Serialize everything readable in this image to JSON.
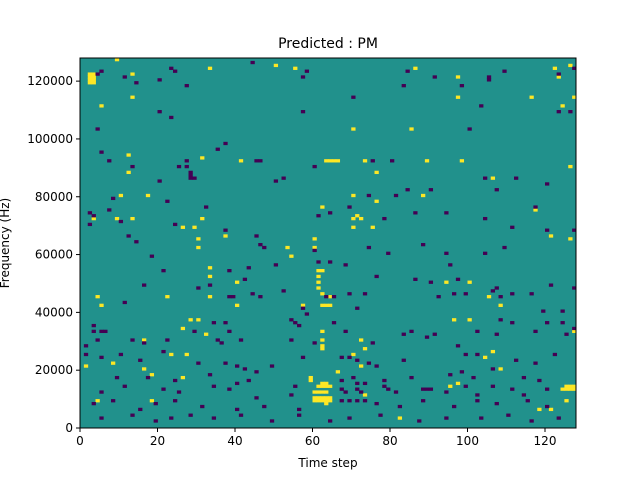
{
  "chart_data": {
    "type": "heatmap",
    "title": "Predicted : PM",
    "xlabel": "Time step",
    "ylabel": "Frequency (Hz)",
    "xlim": [
      0,
      128
    ],
    "ylim": [
      0,
      128000
    ],
    "xticks": [
      0,
      20,
      40,
      60,
      80,
      100,
      120
    ],
    "yticks": [
      0,
      20000,
      40000,
      60000,
      80000,
      100000,
      120000
    ],
    "xtick_labels": [
      "0",
      "20",
      "40",
      "60",
      "80",
      "100",
      "120"
    ],
    "ytick_labels": [
      "0",
      "20000",
      "40000",
      "60000",
      "80000",
      "100000",
      "120000"
    ],
    "colormap": "viridis",
    "colors": {
      "background": "#21918c",
      "high": "#fde725",
      "low": "#440154"
    },
    "bins": {
      "x": 128,
      "y": 128
    },
    "cell_values": {
      "background": 0,
      "high": 1,
      "low": -1
    },
    "cells_high": [
      [
        2,
        119
      ],
      [
        2,
        120
      ],
      [
        2,
        121
      ],
      [
        2,
        122
      ],
      [
        3,
        119
      ],
      [
        3,
        120
      ],
      [
        3,
        121
      ],
      [
        3,
        122
      ],
      [
        9,
        127
      ],
      [
        33,
        124
      ],
      [
        50,
        125
      ],
      [
        55,
        124
      ],
      [
        86,
        124
      ],
      [
        122,
        124
      ],
      [
        126,
        125
      ],
      [
        13,
        122
      ],
      [
        97,
        121
      ],
      [
        123,
        121
      ],
      [
        13,
        114
      ],
      [
        97,
        114
      ],
      [
        116,
        114
      ],
      [
        127,
        114
      ],
      [
        5,
        111
      ],
      [
        124,
        111
      ],
      [
        70,
        103
      ],
      [
        85,
        103
      ],
      [
        12,
        94
      ],
      [
        31,
        93
      ],
      [
        41,
        92
      ],
      [
        63,
        92
      ],
      [
        64,
        92
      ],
      [
        65,
        92
      ],
      [
        66,
        92
      ],
      [
        73,
        92
      ],
      [
        89,
        92
      ],
      [
        98,
        92
      ],
      [
        126,
        90
      ],
      [
        12,
        88
      ],
      [
        76,
        88
      ],
      [
        106,
        86
      ],
      [
        10,
        80
      ],
      [
        17,
        80
      ],
      [
        70,
        80
      ],
      [
        88,
        80
      ],
      [
        62,
        76
      ],
      [
        76,
        78
      ],
      [
        71,
        73
      ],
      [
        117,
        75
      ],
      [
        3,
        72
      ],
      [
        9,
        72
      ],
      [
        13,
        72
      ],
      [
        31,
        72
      ],
      [
        70,
        72
      ],
      [
        72,
        72
      ],
      [
        26,
        69
      ],
      [
        29,
        69
      ],
      [
        70,
        69
      ],
      [
        75,
        69
      ],
      [
        60,
        65
      ],
      [
        30,
        65
      ],
      [
        37,
        66
      ],
      [
        121,
        66
      ],
      [
        126,
        65
      ],
      [
        30,
        62
      ],
      [
        53,
        62
      ],
      [
        60,
        62
      ],
      [
        54,
        59
      ],
      [
        33,
        55
      ],
      [
        61,
        54
      ],
      [
        62,
        54
      ],
      [
        61,
        52
      ],
      [
        61,
        50
      ],
      [
        61,
        48
      ],
      [
        62,
        46
      ],
      [
        33,
        52
      ],
      [
        40,
        50
      ],
      [
        94,
        50
      ],
      [
        100,
        50
      ],
      [
        4,
        45
      ],
      [
        22,
        45
      ],
      [
        33,
        45
      ],
      [
        57,
        42
      ],
      [
        64,
        45
      ],
      [
        105,
        45
      ],
      [
        108,
        42
      ],
      [
        5,
        42
      ],
      [
        40,
        42
      ],
      [
        62,
        42
      ],
      [
        63,
        42
      ],
      [
        64,
        42
      ],
      [
        28,
        37
      ],
      [
        30,
        37
      ],
      [
        96,
        37
      ],
      [
        100,
        37
      ],
      [
        127,
        33
      ],
      [
        32,
        32
      ],
      [
        62,
        33
      ],
      [
        62,
        30
      ],
      [
        26,
        34
      ],
      [
        16,
        30
      ],
      [
        62,
        28
      ],
      [
        62,
        27
      ],
      [
        72,
        30
      ],
      [
        23,
        25
      ],
      [
        70,
        25
      ],
      [
        106,
        26
      ],
      [
        27,
        25
      ],
      [
        73,
        27
      ],
      [
        16,
        20
      ],
      [
        1,
        21
      ],
      [
        108,
        20
      ],
      [
        8,
        22
      ],
      [
        104,
        24
      ],
      [
        72,
        21
      ],
      [
        18,
        18
      ],
      [
        26,
        17
      ],
      [
        66,
        19
      ],
      [
        59,
        16
      ],
      [
        59,
        17
      ],
      [
        95,
        14
      ],
      [
        97,
        15
      ],
      [
        60,
        12
      ],
      [
        61,
        12
      ],
      [
        62,
        12
      ],
      [
        63,
        12
      ],
      [
        61,
        14
      ],
      [
        62,
        14
      ],
      [
        63,
        14
      ],
      [
        62,
        15
      ],
      [
        63,
        15
      ],
      [
        64,
        14
      ],
      [
        60,
        10
      ],
      [
        61,
        10
      ],
      [
        62,
        10
      ],
      [
        63,
        10
      ],
      [
        64,
        10
      ],
      [
        60,
        9
      ],
      [
        61,
        9
      ],
      [
        62,
        9
      ],
      [
        63,
        9
      ],
      [
        64,
        9
      ],
      [
        63,
        8
      ],
      [
        4,
        9
      ],
      [
        18,
        9
      ],
      [
        125,
        9
      ],
      [
        73,
        11
      ],
      [
        124,
        13
      ],
      [
        125,
        13
      ],
      [
        126,
        13
      ],
      [
        127,
        13
      ],
      [
        125,
        14
      ],
      [
        126,
        14
      ],
      [
        127,
        14
      ],
      [
        82,
        3
      ],
      [
        118,
        6
      ],
      [
        121,
        6
      ]
    ],
    "cells_low": [
      [
        4,
        122
      ],
      [
        23,
        124
      ],
      [
        44,
        126
      ],
      [
        24,
        123
      ],
      [
        58,
        123
      ],
      [
        84,
        123
      ],
      [
        109,
        123
      ],
      [
        123,
        122
      ],
      [
        5,
        123
      ],
      [
        105,
        121
      ],
      [
        127,
        124
      ],
      [
        11,
        121
      ],
      [
        14,
        119
      ],
      [
        20,
        120
      ],
      [
        27,
        118
      ],
      [
        57,
        121
      ],
      [
        91,
        121
      ],
      [
        105,
        120
      ],
      [
        83,
        118
      ],
      [
        98,
        118
      ],
      [
        20,
        109
      ],
      [
        57,
        109
      ],
      [
        103,
        111
      ],
      [
        126,
        109
      ],
      [
        123,
        109
      ],
      [
        23,
        107
      ],
      [
        70,
        114
      ],
      [
        4,
        103
      ],
      [
        100,
        103
      ],
      [
        5,
        95
      ],
      [
        27,
        92
      ],
      [
        35,
        96
      ],
      [
        37,
        98
      ],
      [
        45,
        92
      ],
      [
        46,
        92
      ],
      [
        75,
        92
      ],
      [
        80,
        92
      ],
      [
        7,
        92
      ],
      [
        13,
        90
      ],
      [
        25,
        90
      ],
      [
        27,
        90
      ],
      [
        28,
        88
      ],
      [
        20,
        85
      ],
      [
        28,
        86
      ],
      [
        29,
        86
      ],
      [
        28,
        87
      ],
      [
        50,
        85
      ],
      [
        60,
        90
      ],
      [
        52,
        86
      ],
      [
        104,
        86
      ],
      [
        84,
        82
      ],
      [
        90,
        82
      ],
      [
        107,
        82
      ],
      [
        112,
        86
      ],
      [
        120,
        84
      ],
      [
        8,
        79
      ],
      [
        22,
        78
      ],
      [
        74,
        80
      ],
      [
        81,
        80
      ],
      [
        117,
        76
      ],
      [
        2,
        74
      ],
      [
        3,
        73
      ],
      [
        2,
        70
      ],
      [
        7,
        75
      ],
      [
        32,
        76
      ],
      [
        64,
        74
      ],
      [
        69,
        76
      ],
      [
        86,
        74
      ],
      [
        94,
        74
      ],
      [
        10,
        71
      ],
      [
        12,
        66
      ],
      [
        14,
        64
      ],
      [
        24,
        70
      ],
      [
        37,
        68
      ],
      [
        45,
        66
      ],
      [
        61,
        73
      ],
      [
        78,
        72
      ],
      [
        104,
        72
      ],
      [
        111,
        69
      ],
      [
        120,
        68
      ],
      [
        127,
        68
      ],
      [
        46,
        63
      ],
      [
        47,
        62
      ],
      [
        74,
        62
      ],
      [
        79,
        60
      ],
      [
        95,
        56
      ],
      [
        104,
        60
      ],
      [
        109,
        62
      ],
      [
        88,
        63
      ],
      [
        18,
        59
      ],
      [
        21,
        54
      ],
      [
        38,
        54
      ],
      [
        43,
        55
      ],
      [
        42,
        51
      ],
      [
        50,
        56
      ],
      [
        60,
        61
      ],
      [
        61,
        57
      ],
      [
        64,
        57
      ],
      [
        68,
        56
      ],
      [
        94,
        60
      ],
      [
        76,
        52
      ],
      [
        86,
        51
      ],
      [
        90,
        50
      ],
      [
        97,
        51
      ],
      [
        16,
        49
      ],
      [
        33,
        49
      ],
      [
        44,
        46
      ],
      [
        46,
        45
      ],
      [
        52,
        47
      ],
      [
        63,
        45
      ],
      [
        65,
        45
      ],
      [
        69,
        46
      ],
      [
        73,
        46
      ],
      [
        106,
        47
      ],
      [
        107,
        48
      ],
      [
        116,
        46
      ],
      [
        121,
        49
      ],
      [
        127,
        48
      ],
      [
        11,
        43
      ],
      [
        30,
        48
      ],
      [
        38,
        45
      ],
      [
        39,
        45
      ],
      [
        57,
        41
      ],
      [
        58,
        39
      ],
      [
        71,
        41
      ],
      [
        92,
        45
      ],
      [
        96,
        46
      ],
      [
        99,
        46
      ],
      [
        108,
        45
      ],
      [
        111,
        46
      ],
      [
        119,
        40
      ],
      [
        124,
        40
      ],
      [
        3,
        35
      ],
      [
        3,
        33
      ],
      [
        5,
        33
      ],
      [
        6,
        33
      ],
      [
        29,
        33
      ],
      [
        34,
        36
      ],
      [
        37,
        36
      ],
      [
        54,
        37
      ],
      [
        55,
        36
      ],
      [
        56,
        35
      ],
      [
        65,
        36
      ],
      [
        68,
        33
      ],
      [
        83,
        32
      ],
      [
        89,
        31
      ],
      [
        102,
        33
      ],
      [
        107,
        32
      ],
      [
        111,
        36
      ],
      [
        120,
        36
      ],
      [
        124,
        36
      ],
      [
        127,
        34
      ],
      [
        1,
        28
      ],
      [
        4,
        30
      ],
      [
        13,
        30
      ],
      [
        16,
        29
      ],
      [
        22,
        30
      ],
      [
        35,
        30
      ],
      [
        36,
        29
      ],
      [
        38,
        33
      ],
      [
        41,
        30
      ],
      [
        54,
        30
      ],
      [
        60,
        29
      ],
      [
        75,
        29
      ],
      [
        85,
        33
      ],
      [
        91,
        32
      ],
      [
        97,
        28
      ],
      [
        108,
        37
      ],
      [
        117,
        33
      ],
      [
        125,
        32
      ],
      [
        1,
        25
      ],
      [
        5,
        24
      ],
      [
        10,
        25
      ],
      [
        15,
        23
      ],
      [
        21,
        26
      ],
      [
        30,
        22
      ],
      [
        37,
        22
      ],
      [
        40,
        21
      ],
      [
        42,
        20
      ],
      [
        45,
        19
      ],
      [
        49,
        21
      ],
      [
        57,
        24
      ],
      [
        67,
        24
      ],
      [
        69,
        24
      ],
      [
        71,
        23
      ],
      [
        74,
        22
      ],
      [
        76,
        21
      ],
      [
        83,
        23
      ],
      [
        99,
        25
      ],
      [
        102,
        25
      ],
      [
        112,
        23
      ],
      [
        117,
        22
      ],
      [
        122,
        25
      ],
      [
        9,
        17
      ],
      [
        17,
        17
      ],
      [
        24,
        16
      ],
      [
        33,
        18
      ],
      [
        40,
        15
      ],
      [
        43,
        16
      ],
      [
        55,
        14
      ],
      [
        67,
        16
      ],
      [
        70,
        17
      ],
      [
        71,
        15
      ],
      [
        73,
        15
      ],
      [
        78,
        16
      ],
      [
        85,
        17
      ],
      [
        95,
        18
      ],
      [
        98,
        19
      ],
      [
        101,
        17
      ],
      [
        106,
        20
      ],
      [
        114,
        17
      ],
      [
        118,
        16
      ],
      [
        5,
        12
      ],
      [
        11,
        14
      ],
      [
        21,
        13
      ],
      [
        25,
        12
      ],
      [
        34,
        14
      ],
      [
        38,
        13
      ],
      [
        45,
        10
      ],
      [
        54,
        11
      ],
      [
        67,
        13
      ],
      [
        68,
        12
      ],
      [
        71,
        13
      ],
      [
        72,
        12
      ],
      [
        78,
        14
      ],
      [
        79,
        13
      ],
      [
        81,
        12
      ],
      [
        88,
        13
      ],
      [
        89,
        13
      ],
      [
        90,
        13
      ],
      [
        94,
        12
      ],
      [
        99,
        14
      ],
      [
        102,
        11
      ],
      [
        106,
        14
      ],
      [
        111,
        13
      ],
      [
        114,
        11
      ],
      [
        120,
        13
      ],
      [
        3,
        8
      ],
      [
        8,
        9
      ],
      [
        15,
        6
      ],
      [
        19,
        8
      ],
      [
        24,
        9
      ],
      [
        31,
        7
      ],
      [
        40,
        6
      ],
      [
        47,
        7
      ],
      [
        56,
        6
      ],
      [
        67,
        9
      ],
      [
        69,
        9
      ],
      [
        71,
        9
      ],
      [
        73,
        9
      ],
      [
        76,
        8
      ],
      [
        82,
        7
      ],
      [
        88,
        9
      ],
      [
        96,
        7
      ],
      [
        102,
        9
      ],
      [
        107,
        8
      ],
      [
        115,
        9
      ],
      [
        120,
        7
      ],
      [
        5,
        3
      ],
      [
        13,
        4
      ],
      [
        19,
        2
      ],
      [
        23,
        3
      ],
      [
        28,
        4
      ],
      [
        34,
        3
      ],
      [
        41,
        4
      ],
      [
        49,
        2
      ],
      [
        56,
        4
      ],
      [
        64,
        2
      ],
      [
        69,
        3
      ],
      [
        77,
        4
      ],
      [
        87,
        2
      ],
      [
        94,
        3
      ],
      [
        103,
        3
      ],
      [
        110,
        4
      ],
      [
        116,
        2
      ],
      [
        123,
        3
      ]
    ]
  }
}
